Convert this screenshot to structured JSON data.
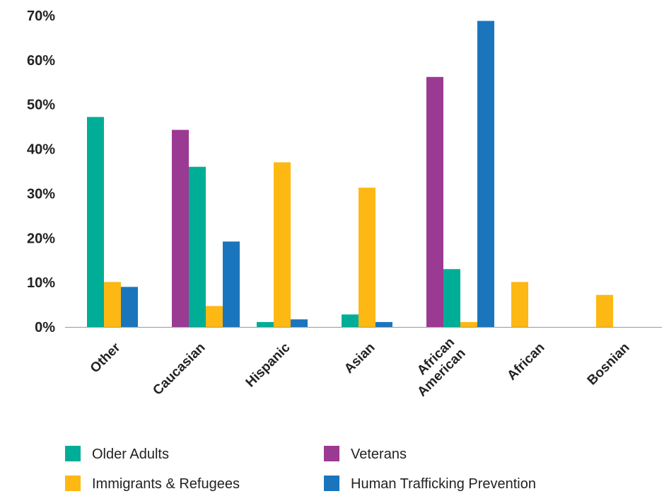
{
  "chart_data": {
    "type": "bar",
    "categories": [
      "Other",
      "Caucasian",
      "Hispanic",
      "Asian",
      "African American",
      "African",
      "Bosnian"
    ],
    "series": [
      {
        "name": "Veterans",
        "color": "#9B3A93",
        "values": [
          0,
          44.3,
          0,
          0,
          56.2,
          0,
          0
        ]
      },
      {
        "name": "Older Adults",
        "color": "#00AE97",
        "values": [
          47.2,
          36,
          1.1,
          2.8,
          13,
          0,
          0
        ]
      },
      {
        "name": "Immigrants & Refugees",
        "color": "#FDB813",
        "values": [
          10.1,
          4.7,
          37,
          31.3,
          1.1,
          10.1,
          7.2
        ]
      },
      {
        "name": "Human Trafficking Prevention",
        "color": "#1B75BC",
        "values": [
          9,
          19.2,
          1.7,
          1.1,
          68.8,
          0,
          0
        ]
      }
    ],
    "y_ticks": [
      "0%",
      "10%",
      "20%",
      "30%",
      "40%",
      "50%",
      "60%",
      "70%"
    ],
    "ylim": [
      0,
      70
    ],
    "grid": false,
    "legend_position": "bottom",
    "legend_order": [
      "Older Adults",
      "Veterans",
      "Immigrants & Refugees",
      "Human Trafficking Prevention"
    ]
  }
}
